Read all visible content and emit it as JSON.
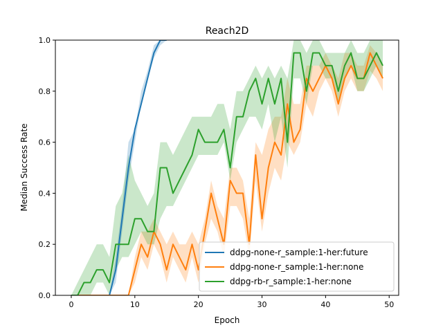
{
  "chart_data": {
    "type": "line",
    "title": "Reach2D",
    "xlabel": "Epoch",
    "ylabel": "Median Success Rate",
    "xlim": [
      -2.5,
      51.5
    ],
    "ylim": [
      0.0,
      1.0
    ],
    "xticks": [
      "0",
      "10",
      "20",
      "30",
      "40",
      "50"
    ],
    "yticks": [
      "0.0",
      "0.2",
      "0.4",
      "0.6",
      "0.8",
      "1.0"
    ],
    "legend_position": "lower-right",
    "grid": false,
    "series": [
      {
        "name": "ddpg-none-r_sample:1-her:future",
        "color": "#1f77b4",
        "x": [
          0,
          1,
          2,
          3,
          4,
          5,
          6,
          7,
          8,
          9,
          10,
          11,
          12,
          13,
          14,
          15
        ],
        "values": [
          0,
          0,
          0,
          0,
          0,
          0,
          0,
          0.1,
          0.3,
          0.5,
          0.65,
          0.75,
          0.85,
          0.95,
          1.0,
          1.0
        ],
        "lower": [
          0,
          0,
          0,
          0,
          0,
          0,
          0,
          0.05,
          0.25,
          0.45,
          0.6,
          0.75,
          0.85,
          0.93,
          0.98,
          1.0
        ],
        "upper": [
          0,
          0,
          0,
          0,
          0,
          0,
          0,
          0.15,
          0.35,
          0.6,
          0.65,
          0.8,
          0.88,
          0.98,
          1.0,
          1.0
        ]
      },
      {
        "name": "ddpg-none-r_sample:1-her:none",
        "color": "#ff7f0e",
        "x": [
          0,
          1,
          2,
          3,
          4,
          5,
          6,
          7,
          8,
          9,
          10,
          11,
          12,
          13,
          14,
          15,
          16,
          17,
          18,
          19,
          20,
          21,
          22,
          23,
          24,
          25,
          26,
          27,
          28,
          29,
          30,
          31,
          32,
          33,
          34,
          35,
          36,
          37,
          38,
          39,
          40,
          41,
          42,
          43,
          44,
          45,
          46,
          47,
          48,
          49
        ],
        "values": [
          0,
          0,
          0,
          0,
          0,
          0,
          0,
          0,
          0,
          0,
          0.1,
          0.2,
          0.15,
          0.25,
          0.2,
          0.1,
          0.2,
          0.15,
          0.1,
          0.2,
          0.1,
          0.25,
          0.4,
          0.3,
          0.2,
          0.45,
          0.4,
          0.4,
          0.2,
          0.55,
          0.3,
          0.5,
          0.6,
          0.55,
          0.75,
          0.6,
          0.65,
          0.85,
          0.8,
          0.85,
          0.9,
          0.85,
          0.75,
          0.85,
          0.9,
          0.85,
          0.85,
          0.95,
          0.9,
          0.85
        ],
        "lower": [
          0,
          0,
          0,
          0,
          0,
          0,
          0,
          0,
          0,
          0,
          0.05,
          0.15,
          0.1,
          0.2,
          0.15,
          0.05,
          0.15,
          0.1,
          0.05,
          0.15,
          0.05,
          0.2,
          0.3,
          0.25,
          0.15,
          0.35,
          0.35,
          0.3,
          0.15,
          0.45,
          0.25,
          0.4,
          0.5,
          0.45,
          0.6,
          0.55,
          0.6,
          0.75,
          0.7,
          0.8,
          0.85,
          0.8,
          0.7,
          0.8,
          0.85,
          0.8,
          0.8,
          0.88,
          0.85,
          0.8
        ],
        "upper": [
          0,
          0,
          0,
          0,
          0,
          0,
          0,
          0,
          0,
          0,
          0.15,
          0.25,
          0.25,
          0.3,
          0.25,
          0.2,
          0.25,
          0.2,
          0.2,
          0.25,
          0.2,
          0.3,
          0.45,
          0.35,
          0.3,
          0.5,
          0.5,
          0.45,
          0.3,
          0.6,
          0.55,
          0.65,
          0.7,
          0.7,
          0.85,
          0.75,
          0.75,
          0.9,
          0.9,
          0.9,
          0.95,
          0.9,
          0.85,
          0.95,
          0.95,
          0.9,
          0.9,
          0.98,
          0.95,
          0.9
        ]
      },
      {
        "name": "ddpg-rb-r_sample:1-her:none",
        "color": "#2ca02c",
        "x": [
          0,
          1,
          2,
          3,
          4,
          5,
          6,
          7,
          8,
          9,
          10,
          11,
          12,
          13,
          14,
          15,
          16,
          17,
          18,
          19,
          20,
          21,
          22,
          23,
          24,
          25,
          26,
          27,
          28,
          29,
          30,
          31,
          32,
          33,
          34,
          35,
          36,
          37,
          38,
          39,
          40,
          41,
          42,
          43,
          44,
          45,
          46,
          47,
          48,
          49
        ],
        "values": [
          0,
          0,
          0.05,
          0.05,
          0.1,
          0.1,
          0.05,
          0.2,
          0.2,
          0.2,
          0.3,
          0.3,
          0.25,
          0.25,
          0.5,
          0.5,
          0.4,
          0.45,
          0.5,
          0.55,
          0.65,
          0.6,
          0.6,
          0.6,
          0.65,
          0.5,
          0.7,
          0.7,
          0.8,
          0.85,
          0.75,
          0.85,
          0.75,
          0.85,
          0.6,
          0.95,
          0.95,
          0.8,
          0.95,
          0.95,
          0.9,
          0.9,
          0.8,
          0.9,
          0.95,
          0.85,
          0.85,
          0.9,
          0.95,
          0.9
        ],
        "lower": [
          0,
          0,
          0,
          0,
          0.05,
          0.05,
          0,
          0.1,
          0.15,
          0.15,
          0.2,
          0.25,
          0.2,
          0.2,
          0.3,
          0.35,
          0.35,
          0.4,
          0.45,
          0.5,
          0.55,
          0.55,
          0.55,
          0.55,
          0.6,
          0.45,
          0.6,
          0.65,
          0.7,
          0.7,
          0.65,
          0.75,
          0.6,
          0.7,
          0.5,
          0.85,
          0.85,
          0.75,
          0.9,
          0.9,
          0.85,
          0.85,
          0.75,
          0.85,
          0.9,
          0.8,
          0.8,
          0.85,
          0.9,
          0.85
        ],
        "upper": [
          0,
          0.05,
          0.1,
          0.15,
          0.2,
          0.2,
          0.15,
          0.35,
          0.4,
          0.55,
          0.45,
          0.4,
          0.35,
          0.4,
          0.6,
          0.6,
          0.55,
          0.6,
          0.65,
          0.7,
          0.7,
          0.7,
          0.7,
          0.75,
          0.75,
          0.65,
          0.8,
          0.8,
          0.85,
          0.9,
          0.85,
          0.9,
          0.85,
          0.9,
          0.85,
          1.0,
          1.0,
          0.95,
          1.0,
          1.0,
          0.95,
          0.95,
          0.95,
          0.95,
          1.0,
          0.95,
          0.95,
          1.0,
          1.0,
          1.0
        ]
      }
    ]
  }
}
